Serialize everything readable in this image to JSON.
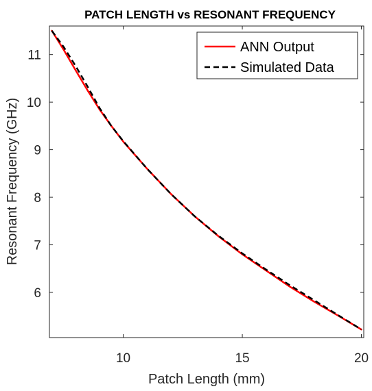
{
  "chart_data": {
    "type": "line",
    "title": "PATCH LENGTH vs RESONANT FREQUENCY",
    "xlabel": "Patch Length (mm)",
    "ylabel": "Resonant Frequency (GHz)",
    "xlim": [
      6.9,
      20.1
    ],
    "ylim": [
      5.05,
      11.6
    ],
    "xticks": [
      10,
      15,
      20
    ],
    "yticks": [
      6,
      7,
      8,
      9,
      10,
      11
    ],
    "grid": false,
    "legend_position": "top-right",
    "series": [
      {
        "name": "ANN Output",
        "color": "#ff0000",
        "style": "solid",
        "x": [
          7.0,
          7.5,
          8.0,
          8.5,
          9.0,
          9.5,
          10.0,
          11.0,
          12.0,
          13.0,
          14.0,
          15.0,
          16.0,
          17.0,
          18.0,
          19.0,
          20.0
        ],
        "y": [
          11.5,
          11.1,
          10.67,
          10.25,
          9.85,
          9.5,
          9.17,
          8.6,
          8.07,
          7.6,
          7.18,
          6.8,
          6.46,
          6.12,
          5.81,
          5.52,
          5.22
        ]
      },
      {
        "name": "Simulated Data",
        "color": "#000000",
        "style": "dashed",
        "x": [
          7.0,
          7.5,
          8.0,
          8.5,
          9.0,
          9.5,
          10.0,
          11.0,
          12.0,
          13.0,
          14.0,
          15.0,
          16.0,
          17.0,
          18.0,
          19.0,
          20.0
        ],
        "y": [
          11.5,
          11.16,
          10.76,
          10.33,
          9.88,
          9.5,
          9.18,
          8.6,
          8.07,
          7.6,
          7.19,
          6.82,
          6.48,
          6.15,
          5.84,
          5.53,
          5.22
        ]
      }
    ]
  }
}
